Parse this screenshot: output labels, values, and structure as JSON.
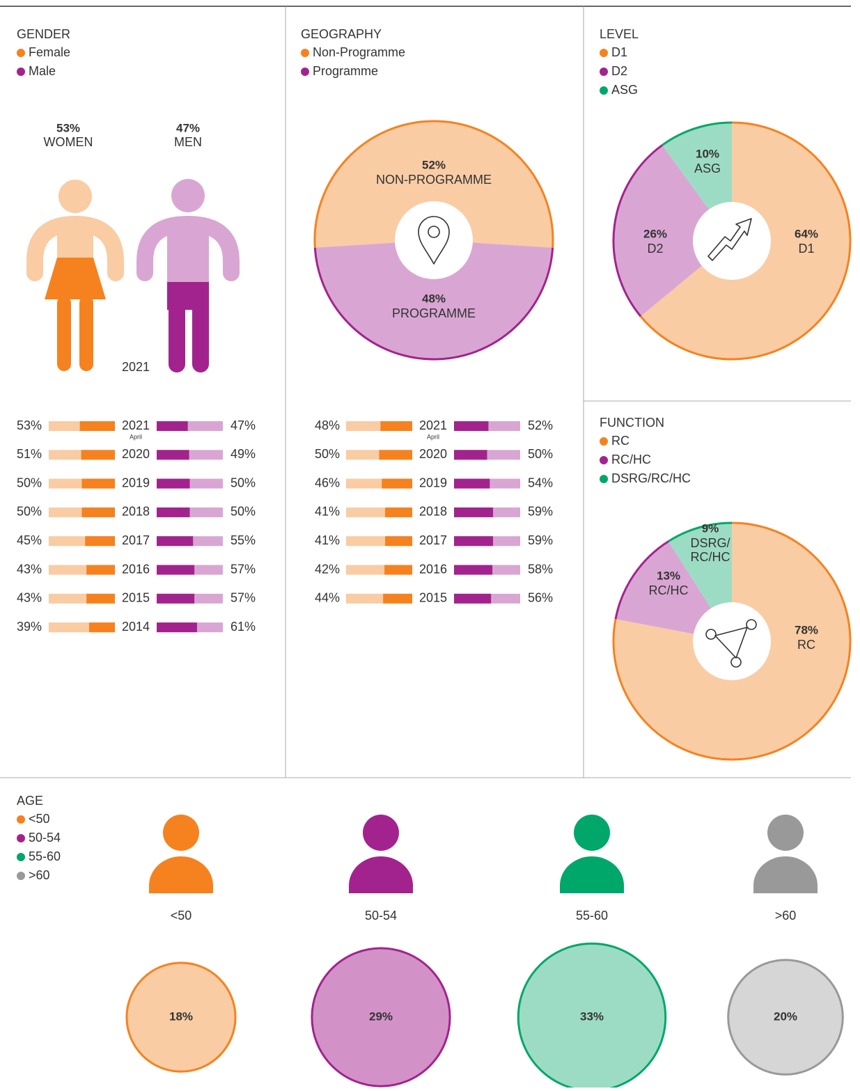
{
  "chart_data": [
    {
      "type": "pictogram",
      "title": "GENDER",
      "year": "2021",
      "series": [
        {
          "name": "Female",
          "color": "#f5821f",
          "light_color": "#f9cca4",
          "value": 53,
          "value_label": "53%",
          "label": "WOMEN"
        },
        {
          "name": "Male",
          "color": "#a3238e",
          "light_color": "#d9a6d3",
          "value": 47,
          "value_label": "47%",
          "label": "MEN"
        }
      ]
    },
    {
      "type": "diverging_bar",
      "categories": [
        "2021",
        "2020",
        "2019",
        "2018",
        "2017",
        "2016",
        "2015",
        "2014"
      ],
      "note": "April",
      "series": [
        {
          "color": "#f5821f",
          "light_color": "#f9cca4",
          "values": [
            53,
            51,
            50,
            50,
            45,
            43,
            43,
            39
          ],
          "value_labels": [
            "53%",
            "51%",
            "50%",
            "50%",
            "45%",
            "43%",
            "43%",
            "39%"
          ]
        },
        {
          "color": "#a3238e",
          "light_color": "#d9a6d3",
          "values": [
            47,
            49,
            50,
            50,
            55,
            57,
            57,
            61
          ],
          "value_labels": [
            "47%",
            "49%",
            "50%",
            "50%",
            "55%",
            "57%",
            "57%",
            "61%"
          ]
        }
      ]
    },
    {
      "type": "pie",
      "title": "GEOGRAPHY",
      "series": [
        {
          "name": "Non-Programme",
          "color": "#f5821f",
          "light_color": "#f9cca4",
          "value": 52,
          "value_label": "52%",
          "label": "NON-PROGRAMME"
        },
        {
          "name": "Programme",
          "color": "#a3238e",
          "light_color": "#d9a6d3",
          "value": 48,
          "value_label": "48%",
          "label": "PROGRAMME"
        }
      ]
    },
    {
      "type": "diverging_bar",
      "categories": [
        "2021",
        "2020",
        "2019",
        "2018",
        "2017",
        "2016",
        "2015"
      ],
      "note": "April",
      "series": [
        {
          "color": "#f5821f",
          "light_color": "#f9cca4",
          "values": [
            48,
            50,
            46,
            41,
            41,
            42,
            44
          ],
          "value_labels": [
            "48%",
            "50%",
            "46%",
            "41%",
            "41%",
            "42%",
            "44%"
          ]
        },
        {
          "color": "#a3238e",
          "light_color": "#d9a6d3",
          "values": [
            52,
            50,
            54,
            59,
            59,
            58,
            56
          ],
          "value_labels": [
            "52%",
            "50%",
            "54%",
            "59%",
            "59%",
            "58%",
            "56%"
          ]
        }
      ]
    },
    {
      "type": "pie",
      "title": "LEVEL",
      "series": [
        {
          "name": "D1",
          "color": "#f5821f",
          "light_color": "#f9cca4",
          "value": 64,
          "value_label": "64%",
          "label": "D1"
        },
        {
          "name": "D2",
          "color": "#a3238e",
          "light_color": "#d9a6d3",
          "value": 26,
          "value_label": "26%",
          "label": "D2"
        },
        {
          "name": "ASG",
          "color": "#00a76a",
          "light_color": "#9ddcc4",
          "value": 10,
          "value_label": "10%",
          "label": "ASG"
        }
      ]
    },
    {
      "type": "pie",
      "title": "FUNCTION",
      "series": [
        {
          "name": "RC",
          "color": "#f5821f",
          "light_color": "#f9cca4",
          "value": 78,
          "value_label": "78%",
          "label": "RC"
        },
        {
          "name": "RC/HC",
          "color": "#a3238e",
          "light_color": "#d9a6d3",
          "value": 13,
          "value_label": "13%",
          "label": "RC/HC"
        },
        {
          "name": "DSRG/RC/HC",
          "color": "#00a76a",
          "light_color": "#9ddcc4",
          "value": 9,
          "value_label": "9%",
          "label": "DSRG/ RC/HC"
        }
      ]
    },
    {
      "type": "bubble",
      "title": "AGE",
      "series": [
        {
          "name": "<50",
          "color": "#f5821f",
          "light_color": "#f9cca4",
          "value": 18,
          "value_label": "18%"
        },
        {
          "name": "50-54",
          "color": "#a3238e",
          "light_color": "#d292c8",
          "value": 29,
          "value_label": "29%"
        },
        {
          "name": "55-60",
          "color": "#00a76a",
          "light_color": "#9ddcc4",
          "value": 33,
          "value_label": "33%"
        },
        {
          "name": ">60",
          "color": "#999999",
          "light_color": "#d6d6d6",
          "value": 20,
          "value_label": "20%"
        }
      ]
    }
  ]
}
